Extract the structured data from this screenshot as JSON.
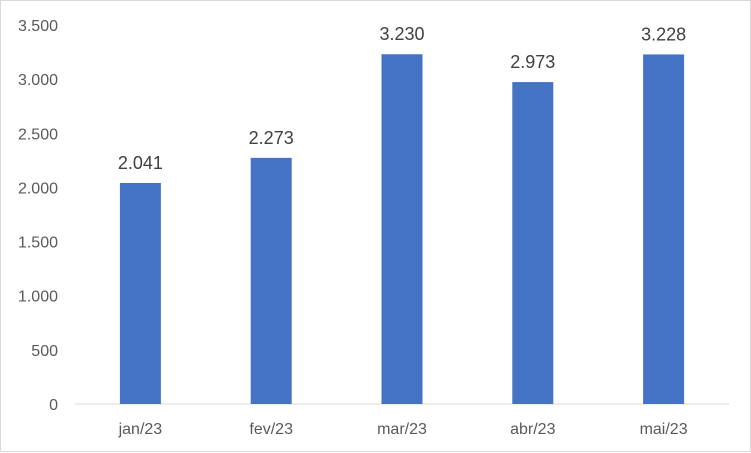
{
  "chart_data": {
    "type": "bar",
    "title": "",
    "xlabel": "",
    "ylabel": "",
    "categories": [
      "jan/23",
      "fev/23",
      "mar/23",
      "abr/23",
      "mai/23"
    ],
    "values": [
      2041,
      2273,
      3230,
      2973,
      3228
    ],
    "value_labels": [
      "2.041",
      "2.273",
      "3.230",
      "2.973",
      "3.228"
    ],
    "ylim": [
      0,
      3500
    ],
    "y_ticks": [
      0,
      500,
      1000,
      1500,
      2000,
      2500,
      3000,
      3500
    ],
    "y_tick_labels": [
      "0",
      "500",
      "1.000",
      "1.500",
      "2.000",
      "2.500",
      "3.000",
      "3.500"
    ],
    "grid": false,
    "legend": "none",
    "bar_color": "#4472C4",
    "axis_color": "#d9d9d9",
    "tick_label_color": "#595959",
    "data_label_color": "#404040"
  }
}
